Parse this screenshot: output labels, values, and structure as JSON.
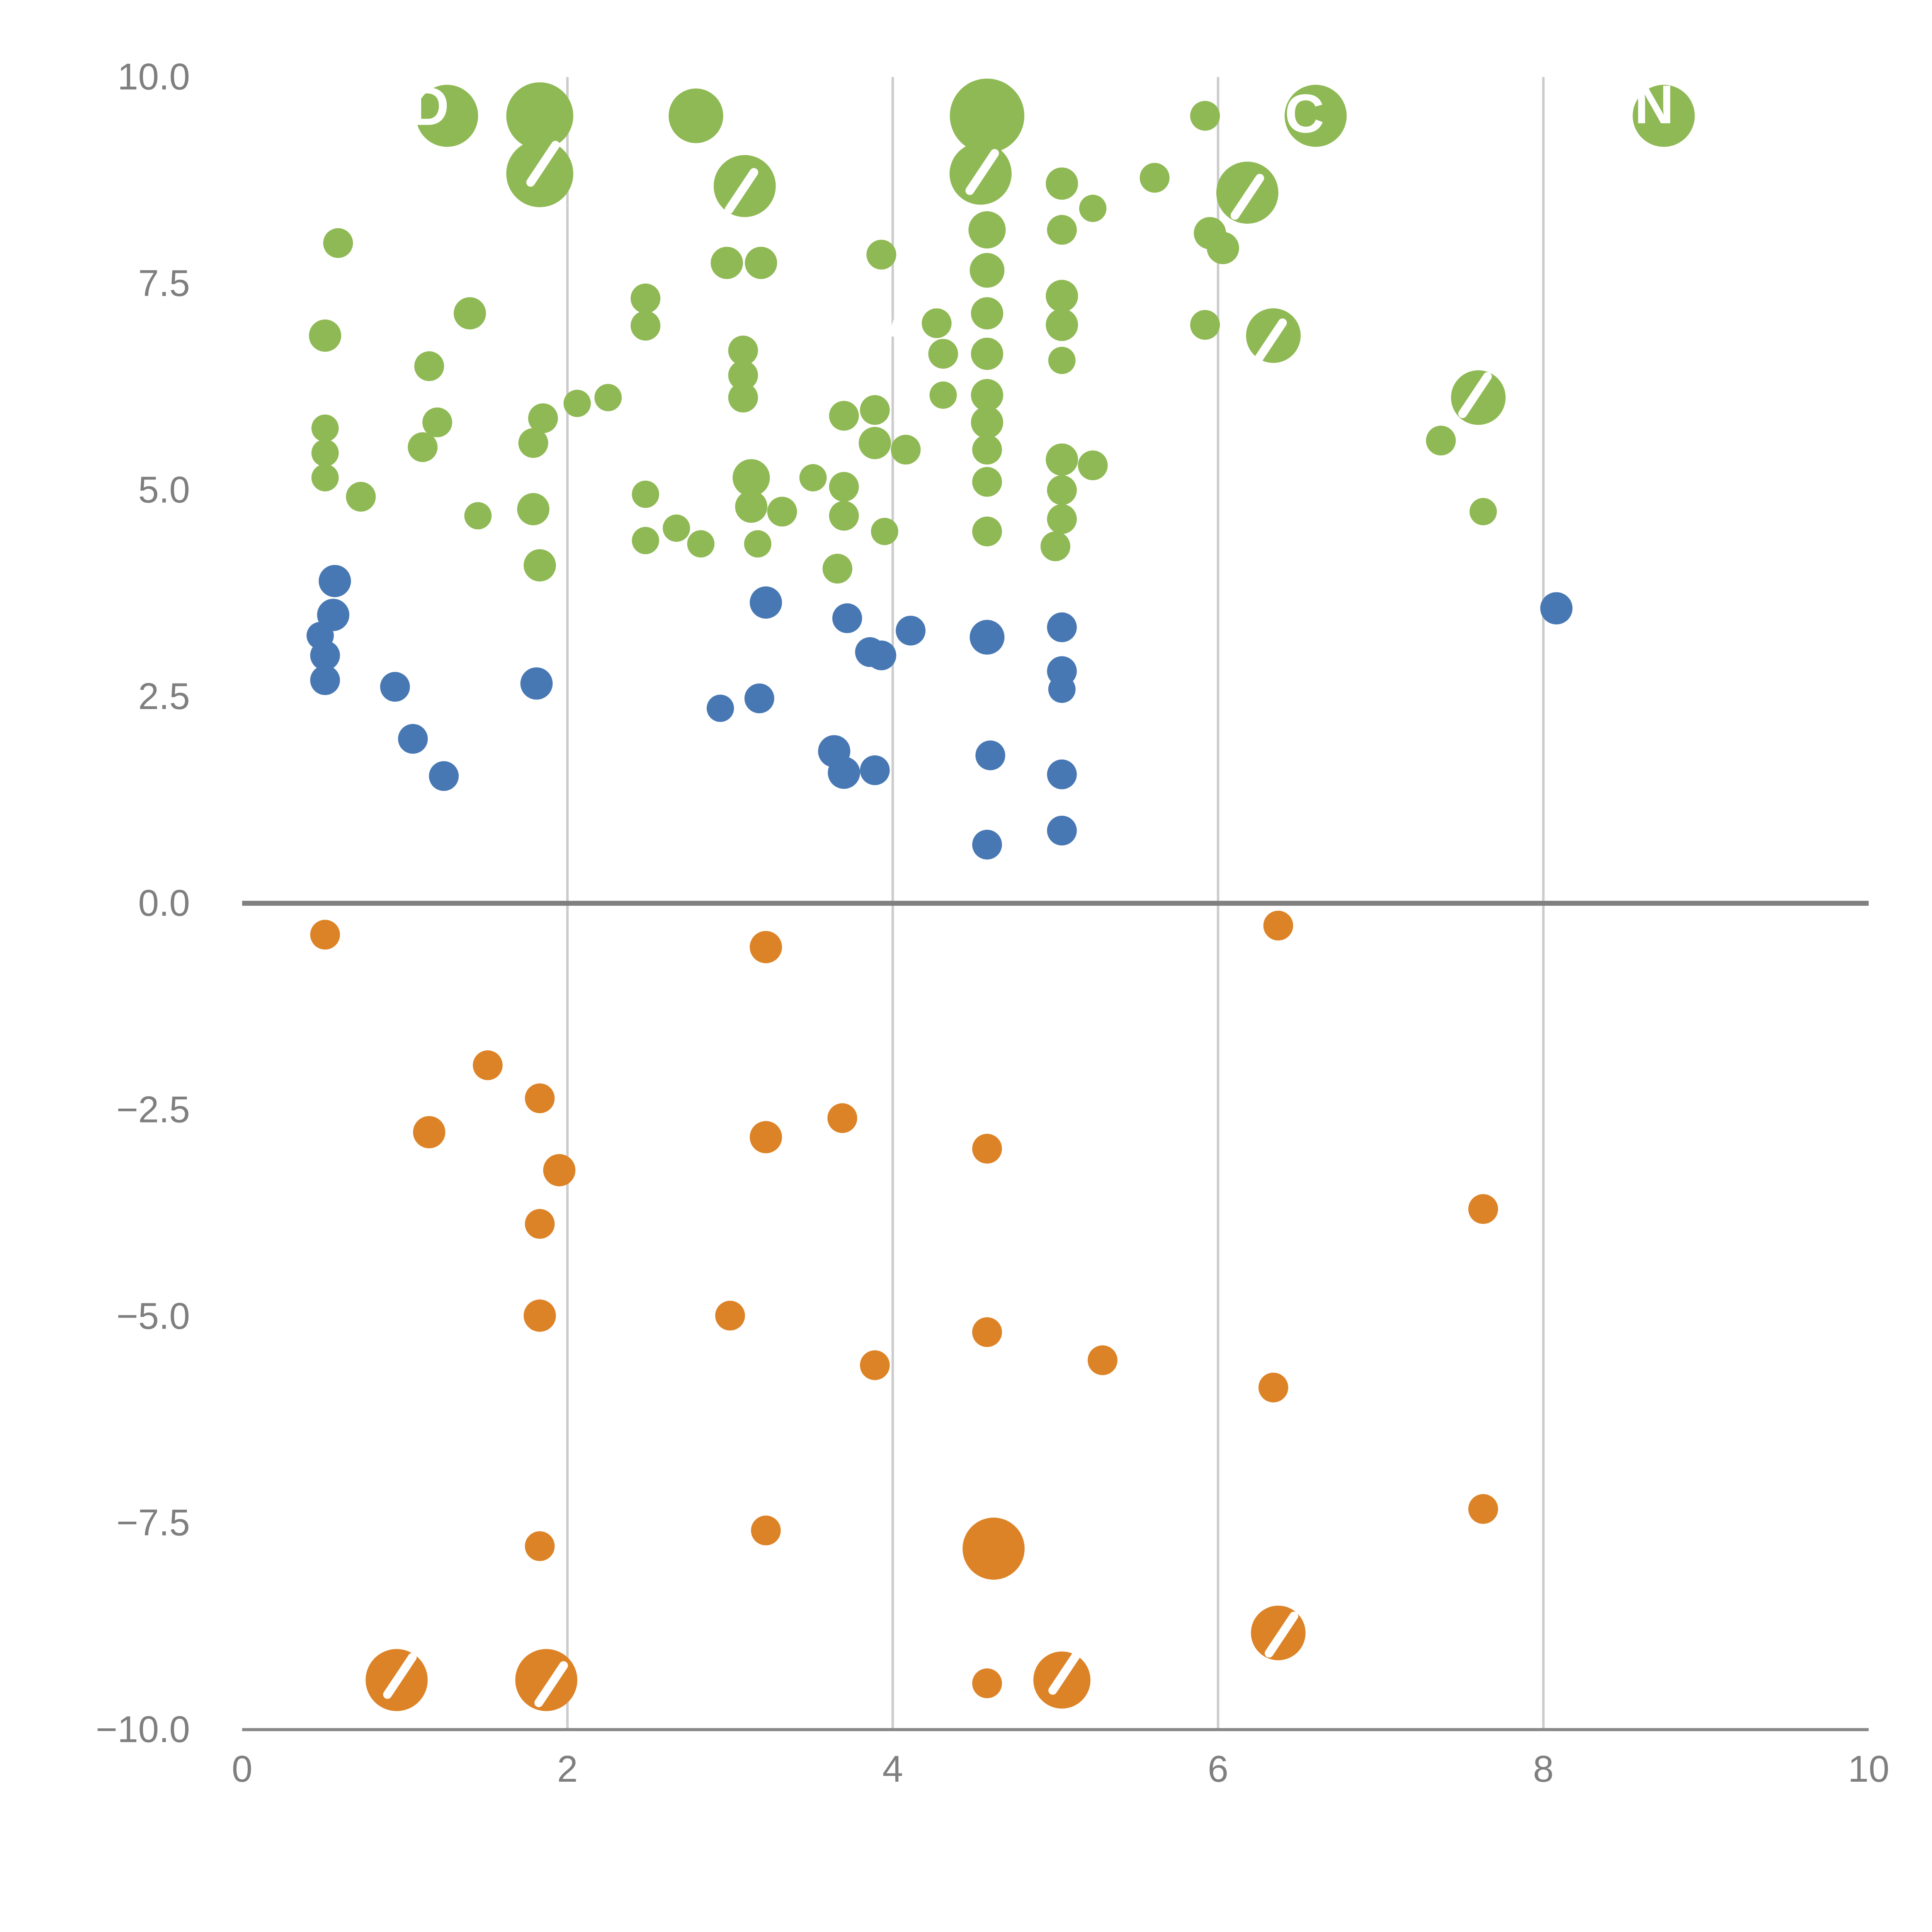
{
  "figure": {
    "background": "#FFFFFF"
  },
  "chart_data": {
    "type": "scatter",
    "title": "",
    "xlabel": "",
    "ylabel": "",
    "legend": "none",
    "x_axis": {
      "range": [
        0,
        10
      ],
      "ticks": [
        {
          "value": 0,
          "label": "0"
        },
        {
          "value": 2,
          "label": "2"
        },
        {
          "value": 4,
          "label": "4"
        },
        {
          "value": 6,
          "label": "6"
        },
        {
          "value": 8,
          "label": "8"
        },
        {
          "value": 10,
          "label": "10"
        }
      ],
      "gridlines": [
        2,
        4,
        6,
        8
      ]
    },
    "y_axis": {
      "range": [
        -10,
        10
      ],
      "ticks": [
        {
          "value": 10,
          "label": "10.0"
        },
        {
          "value": 7.5,
          "label": "7.5"
        },
        {
          "value": 5,
          "label": "5.0"
        },
        {
          "value": 2.5,
          "label": "2.5"
        },
        {
          "value": 0,
          "label": "0.0"
        },
        {
          "value": -2.5,
          "label": "−2.5"
        },
        {
          "value": -5,
          "label": "−5.0"
        },
        {
          "value": -7.5,
          "label": "−7.5"
        },
        {
          "value": -10,
          "label": "−10.0"
        }
      ]
    },
    "zero_line": {
      "y": 0,
      "color": "#808080",
      "width": 4
    },
    "axis_color": "#888888",
    "gridline_color": "#CCCCCC",
    "tick_label_color": "#7F7F7F",
    "series": [
      {
        "name": "green",
        "color": "#8FB954",
        "points": [
          [
            1.26,
            9.53,
            25
          ],
          [
            1.83,
            9.53,
            27
          ],
          [
            1.83,
            8.83,
            27
          ],
          [
            2.79,
            9.53,
            22
          ],
          [
            3.09,
            8.68,
            25
          ],
          [
            4.58,
            9.53,
            30
          ],
          [
            4.54,
            8.83,
            25
          ],
          [
            5.04,
            8.71,
            13
          ],
          [
            5.61,
            8.78,
            12
          ],
          [
            5.92,
            9.53,
            12
          ],
          [
            6.6,
            9.53,
            25
          ],
          [
            8.74,
            9.53,
            25
          ],
          [
            6.18,
            8.6,
            25
          ],
          [
            5.23,
            8.41,
            11
          ],
          [
            0.59,
            7.99,
            12
          ],
          [
            4.58,
            8.15,
            15
          ],
          [
            5.04,
            8.15,
            12
          ],
          [
            5.95,
            8.11,
            13
          ],
          [
            2.98,
            7.75,
            13
          ],
          [
            3.19,
            7.75,
            13
          ],
          [
            3.93,
            7.85,
            12
          ],
          [
            4.58,
            7.66,
            14
          ],
          [
            6.03,
            7.93,
            13
          ],
          [
            5.04,
            7.35,
            13
          ],
          [
            0.51,
            6.87,
            13
          ],
          [
            1.4,
            7.14,
            13
          ],
          [
            2.48,
            7.32,
            12
          ],
          [
            2.48,
            6.99,
            12
          ],
          [
            4.27,
            7.02,
            12
          ],
          [
            4.58,
            7.14,
            13
          ],
          [
            5.04,
            7.0,
            13
          ],
          [
            5.92,
            7.0,
            12
          ],
          [
            6.34,
            6.87,
            22
          ],
          [
            1.15,
            6.5,
            12
          ],
          [
            3.08,
            6.69,
            12
          ],
          [
            3.08,
            6.39,
            12
          ],
          [
            4.31,
            6.65,
            12
          ],
          [
            4.58,
            6.65,
            13
          ],
          [
            5.04,
            6.57,
            11
          ],
          [
            7.6,
            6.12,
            22
          ],
          [
            0.51,
            5.75,
            11
          ],
          [
            1.2,
            5.82,
            12
          ],
          [
            1.85,
            5.87,
            12
          ],
          [
            2.06,
            6.05,
            11
          ],
          [
            2.25,
            6.12,
            11
          ],
          [
            3.08,
            6.12,
            12
          ],
          [
            3.7,
            5.9,
            12
          ],
          [
            3.89,
            5.97,
            12
          ],
          [
            4.31,
            6.15,
            11
          ],
          [
            4.58,
            6.15,
            13
          ],
          [
            4.58,
            5.82,
            13
          ],
          [
            7.37,
            5.6,
            12
          ],
          [
            0.51,
            5.45,
            11
          ],
          [
            1.11,
            5.52,
            12
          ],
          [
            1.79,
            5.57,
            12
          ],
          [
            3.89,
            5.57,
            13
          ],
          [
            4.08,
            5.49,
            12
          ],
          [
            4.58,
            5.49,
            12
          ],
          [
            5.04,
            5.37,
            13
          ],
          [
            5.23,
            5.3,
            12
          ],
          [
            0.51,
            5.15,
            11
          ],
          [
            3.13,
            5.15,
            15
          ],
          [
            3.51,
            5.15,
            11
          ],
          [
            3.7,
            5.04,
            12
          ],
          [
            4.58,
            5.1,
            12
          ],
          [
            5.04,
            5.0,
            12
          ],
          [
            0.73,
            4.92,
            12
          ],
          [
            1.79,
            4.77,
            13
          ],
          [
            2.48,
            4.95,
            11
          ],
          [
            3.13,
            4.8,
            13
          ],
          [
            3.32,
            4.74,
            12
          ],
          [
            3.7,
            4.69,
            12
          ],
          [
            5.04,
            4.65,
            12
          ],
          [
            7.63,
            4.74,
            11
          ],
          [
            1.45,
            4.69,
            11
          ],
          [
            2.48,
            4.39,
            11
          ],
          [
            2.67,
            4.54,
            11
          ],
          [
            2.82,
            4.35,
            11
          ],
          [
            3.17,
            4.35,
            11
          ],
          [
            3.95,
            4.5,
            11
          ],
          [
            4.58,
            4.5,
            12
          ],
          [
            5.0,
            4.32,
            12
          ],
          [
            1.83,
            4.09,
            13
          ],
          [
            3.66,
            4.05,
            12
          ]
        ]
      },
      {
        "name": "blue",
        "color": "#4878B4",
        "points": [
          [
            0.57,
            3.9,
            13
          ],
          [
            0.56,
            3.49,
            13
          ],
          [
            0.48,
            3.24,
            11
          ],
          [
            0.51,
            3.0,
            12
          ],
          [
            0.51,
            2.7,
            12
          ],
          [
            0.94,
            2.62,
            12
          ],
          [
            1.05,
            1.99,
            12
          ],
          [
            1.24,
            1.54,
            12
          ],
          [
            1.81,
            2.66,
            13
          ],
          [
            2.94,
            2.36,
            11
          ],
          [
            3.18,
            2.48,
            12
          ],
          [
            3.22,
            3.64,
            13
          ],
          [
            3.64,
            1.84,
            13
          ],
          [
            3.7,
            1.58,
            13
          ],
          [
            3.72,
            3.45,
            12
          ],
          [
            3.86,
            3.04,
            12
          ],
          [
            3.89,
            1.61,
            12
          ],
          [
            3.93,
            3.0,
            12
          ],
          [
            4.11,
            3.3,
            12
          ],
          [
            4.58,
            3.22,
            14
          ],
          [
            4.6,
            1.79,
            12
          ],
          [
            4.58,
            0.71,
            12
          ],
          [
            5.04,
            3.34,
            12
          ],
          [
            5.04,
            2.81,
            12
          ],
          [
            5.04,
            2.59,
            11
          ],
          [
            5.04,
            1.56,
            12
          ],
          [
            5.04,
            0.88,
            12
          ],
          [
            8.08,
            3.57,
            13
          ]
        ]
      },
      {
        "name": "orange",
        "color": "#DD8327",
        "points": [
          [
            0.51,
            -0.38,
            12
          ],
          [
            3.22,
            -0.53,
            13
          ],
          [
            6.37,
            -0.27,
            12
          ],
          [
            1.51,
            -1.96,
            12
          ],
          [
            1.15,
            -2.77,
            13
          ],
          [
            1.83,
            -2.36,
            12
          ],
          [
            1.95,
            -3.23,
            13
          ],
          [
            3.22,
            -2.83,
            13
          ],
          [
            3.69,
            -2.6,
            12
          ],
          [
            4.58,
            -2.97,
            12
          ],
          [
            1.83,
            -3.88,
            12
          ],
          [
            7.63,
            -3.7,
            12
          ],
          [
            1.83,
            -4.99,
            13
          ],
          [
            3.0,
            -4.99,
            12
          ],
          [
            4.58,
            -5.19,
            12
          ],
          [
            3.89,
            -5.59,
            12
          ],
          [
            5.29,
            -5.53,
            12
          ],
          [
            6.34,
            -5.86,
            12
          ],
          [
            7.63,
            -7.33,
            12
          ],
          [
            3.22,
            -7.59,
            12
          ],
          [
            1.83,
            -7.78,
            12
          ],
          [
            4.62,
            -7.81,
            25
          ],
          [
            6.37,
            -8.83,
            22
          ],
          [
            0.95,
            -9.4,
            25
          ],
          [
            1.87,
            -9.4,
            25
          ],
          [
            4.58,
            -9.44,
            12
          ],
          [
            5.04,
            -9.4,
            23
          ]
        ]
      }
    ],
    "annotations": {
      "color": "#FFFFFF",
      "labels": [
        {
          "text": "D",
          "x": 1.03,
          "y": 9.42,
          "size": 44
        },
        {
          "text": "C",
          "x": 6.41,
          "y": 9.33,
          "size": 44
        },
        {
          "text": "N",
          "x": 8.56,
          "y": 9.44,
          "size": 44
        },
        {
          "text": "MA",
          "x": 3.68,
          "y": 6.86,
          "size": 44
        }
      ],
      "slashes": [
        {
          "x": 1.85,
          "y": 8.95
        },
        {
          "x": 3.07,
          "y": 8.62
        },
        {
          "x": 4.55,
          "y": 8.85
        },
        {
          "x": 6.18,
          "y": 8.55
        },
        {
          "x": 6.32,
          "y": 6.8
        },
        {
          "x": 7.58,
          "y": 6.15
        },
        {
          "x": 0.97,
          "y": -9.35
        },
        {
          "x": 1.9,
          "y": -9.45
        },
        {
          "x": 5.06,
          "y": -9.3
        },
        {
          "x": 6.39,
          "y": -8.85
        }
      ]
    }
  }
}
